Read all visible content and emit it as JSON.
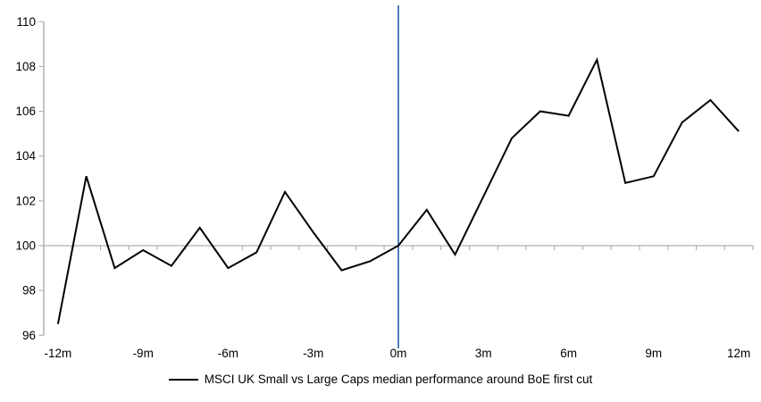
{
  "chart_data": {
    "type": "line",
    "title": "",
    "xlabel": "",
    "ylabel": "",
    "x_months": [
      -12,
      -11,
      -10,
      -9,
      -8,
      -7,
      -6,
      -5,
      -4,
      -3,
      -2,
      -1,
      0,
      1,
      2,
      3,
      4,
      5,
      6,
      7,
      8,
      9,
      10,
      11,
      12
    ],
    "series": [
      {
        "name": "MSCI UK Small vs Large Caps median performance around BoE first cut",
        "color": "#000000",
        "values": [
          96.5,
          103.1,
          99.0,
          99.8,
          99.1,
          100.8,
          99.0,
          99.7,
          102.4,
          100.6,
          98.9,
          99.3,
          100.0,
          101.6,
          99.6,
          102.2,
          104.8,
          106.0,
          105.8,
          108.3,
          102.8,
          103.1,
          105.5,
          106.5,
          105.1
        ]
      }
    ],
    "ylim": [
      96,
      110
    ],
    "y_ticks": [
      96,
      98,
      100,
      102,
      104,
      106,
      108,
      110
    ],
    "x_tick_labels": [
      "-12m",
      "-9m",
      "-6m",
      "-3m",
      "0m",
      "3m",
      "6m",
      "9m",
      "12m"
    ],
    "x_tick_label_months": [
      -12,
      -9,
      -6,
      -3,
      0,
      3,
      6,
      9,
      12
    ],
    "baseline_value": 100,
    "event_line_month": 0,
    "grid": "off",
    "legend_position": "bottom",
    "colors": {
      "series": "#000000",
      "event_line": "#4f81bd",
      "axis": "#a6a6a6",
      "baseline": "#b0b0b0",
      "text": "#000000"
    }
  }
}
